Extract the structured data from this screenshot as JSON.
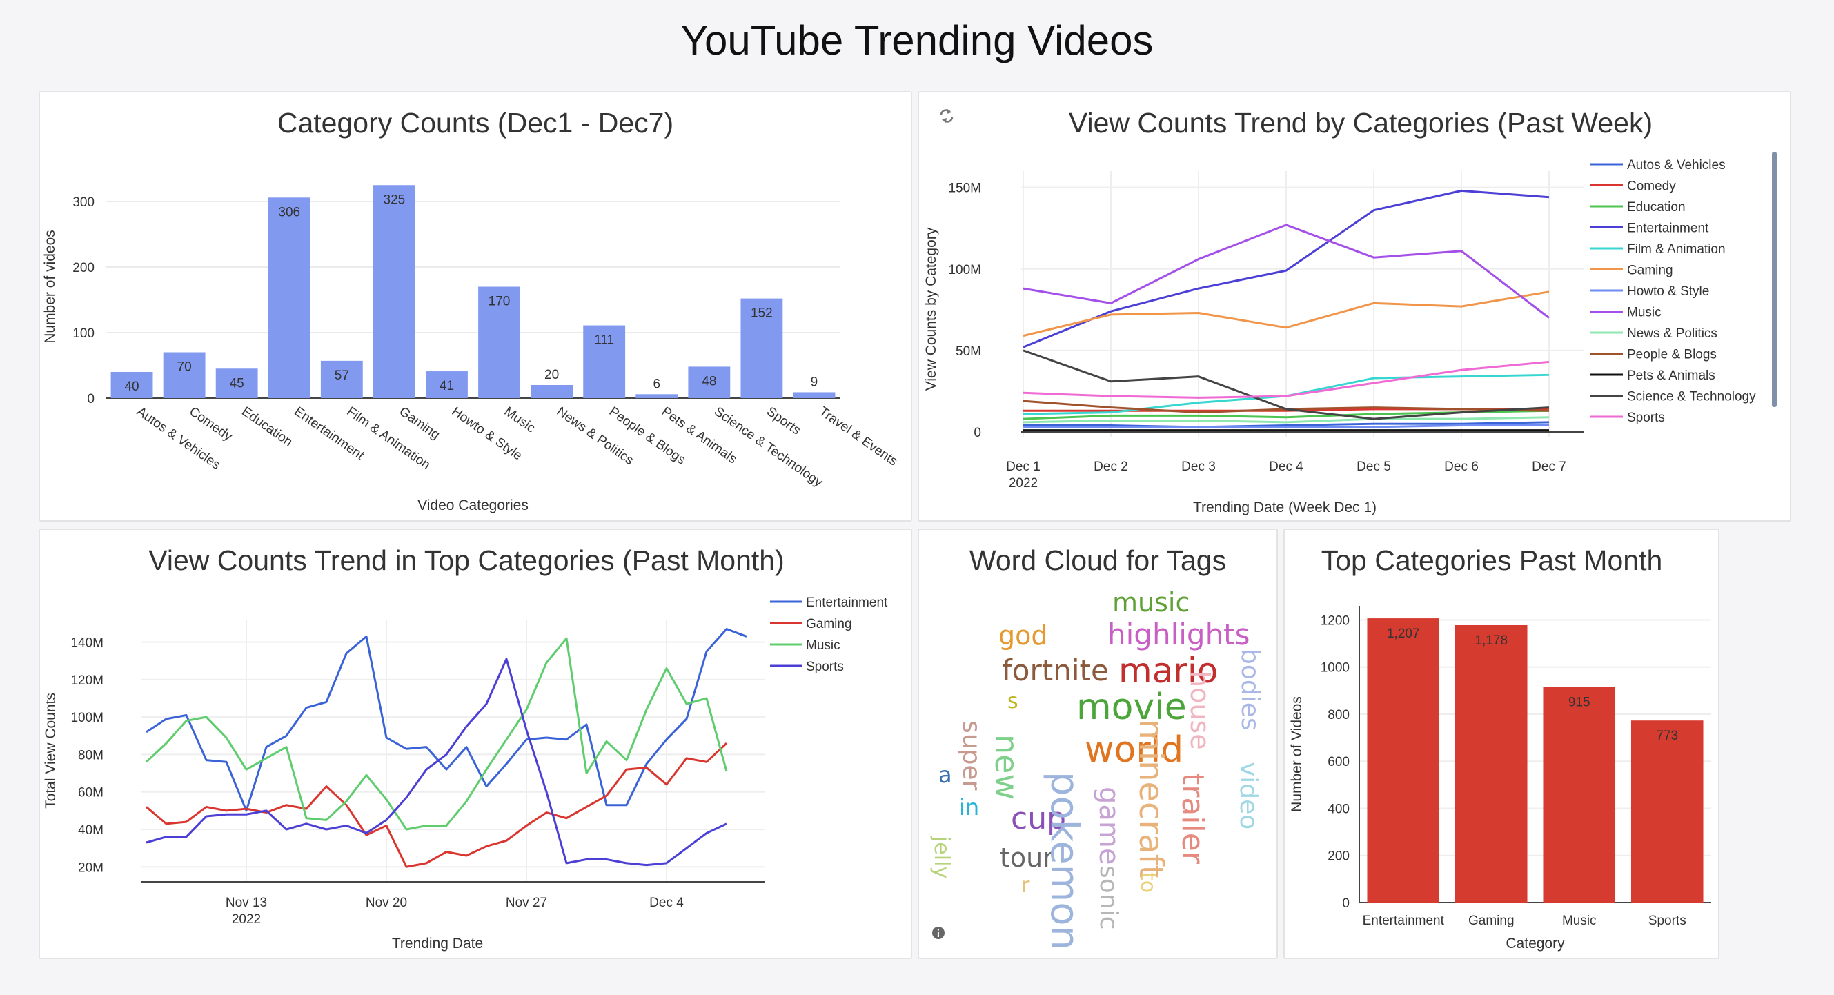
{
  "page": {
    "title": "YouTube Trending Videos"
  },
  "icons": {
    "refresh": "refresh-icon",
    "info": "info-icon"
  },
  "chart_data": [
    {
      "id": "category_counts",
      "type": "bar",
      "title": "Category Counts (Dec1 - Dec7)",
      "xlabel": "Video Categories",
      "ylabel": "Number of videos",
      "ylim": [
        0,
        340
      ],
      "yticks": [
        0,
        100,
        200,
        300
      ],
      "color": "#8299f0",
      "categories": [
        "Autos & Vehicles",
        "Comedy",
        "Education",
        "Entertainment",
        "Film & Animation",
        "Gaming",
        "Howto & Style",
        "Music",
        "News & Politics",
        "People & Blogs",
        "Pets & Animals",
        "Science & Technology",
        "Sports",
        "Travel & Events"
      ],
      "values": [
        40,
        70,
        45,
        306,
        57,
        325,
        41,
        170,
        20,
        111,
        6,
        48,
        152,
        9
      ]
    },
    {
      "id": "views_by_category_week",
      "type": "line",
      "title": "View Counts Trend by Categories (Past Week)",
      "xlabel": "Trending Date (Week Dec 1)",
      "ylabel": "View Counts by Category",
      "x": [
        "Dec 1",
        "Dec 2",
        "Dec 3",
        "Dec 4",
        "Dec 5",
        "Dec 6",
        "Dec 7"
      ],
      "x_sub": "2022",
      "ylim": [
        0,
        160
      ],
      "yticks": [
        {
          "v": 0,
          "label": "0"
        },
        {
          "v": 50,
          "label": "50M"
        },
        {
          "v": 100,
          "label": "100M"
        },
        {
          "v": 150,
          "label": "150M"
        }
      ],
      "legend": "right",
      "series": [
        {
          "name": "Autos & Vehicles",
          "color": "#3b63d8",
          "values": [
            4,
            4,
            3,
            4,
            5,
            5,
            6
          ]
        },
        {
          "name": "Comedy",
          "color": "#d9362f",
          "values": [
            13,
            13,
            13,
            13,
            14,
            14,
            14
          ]
        },
        {
          "name": "Education",
          "color": "#4cc44f",
          "values": [
            8,
            10,
            10,
            9,
            11,
            12,
            13
          ]
        },
        {
          "name": "Entertainment",
          "color": "#4b3fd6",
          "values": [
            52,
            74,
            88,
            99,
            136,
            148,
            144
          ]
        },
        {
          "name": "Film & Animation",
          "color": "#38d6d0",
          "values": [
            11,
            12,
            18,
            22,
            33,
            34,
            35
          ]
        },
        {
          "name": "Gaming",
          "color": "#f0954a",
          "values": [
            59,
            72,
            73,
            64,
            79,
            77,
            86
          ]
        },
        {
          "name": "Howto & Style",
          "color": "#6e8cf2",
          "values": [
            3,
            3,
            3,
            3,
            3,
            4,
            4
          ]
        },
        {
          "name": "Music",
          "color": "#a34fe8",
          "values": [
            88,
            79,
            106,
            127,
            107,
            111,
            70
          ]
        },
        {
          "name": "News & Politics",
          "color": "#8fe7b0",
          "values": [
            6,
            7,
            7,
            6,
            8,
            8,
            9
          ]
        },
        {
          "name": "People & Blogs",
          "color": "#a0522d",
          "values": [
            19,
            15,
            12,
            14,
            15,
            14,
            13
          ]
        },
        {
          "name": "Pets & Animals",
          "color": "#111111",
          "values": [
            1,
            1,
            1,
            1,
            1,
            1,
            1
          ]
        },
        {
          "name": "Science & Technology",
          "color": "#444444",
          "values": [
            50,
            31,
            34,
            14,
            8,
            12,
            15
          ]
        },
        {
          "name": "Sports",
          "color": "#ef6ad4",
          "values": [
            24,
            22,
            21,
            22,
            30,
            38,
            43
          ]
        }
      ]
    },
    {
      "id": "views_top_month",
      "type": "line",
      "title": "View Counts Trend in Top Categories (Past Month)",
      "xlabel": "Trending Date",
      "ylabel": "Total View Counts",
      "x_start": "Nov 8 2022",
      "xticks": [
        {
          "day": 5,
          "label": "Nov 13",
          "sub": "2022"
        },
        {
          "day": 12,
          "label": "Nov 20"
        },
        {
          "day": 19,
          "label": "Nov 27"
        },
        {
          "day": 26,
          "label": "Dec 4"
        }
      ],
      "xlim": [
        0,
        31
      ],
      "ylim": [
        12,
        152
      ],
      "yticks": [
        {
          "v": 20,
          "label": "20M"
        },
        {
          "v": 40,
          "label": "40M"
        },
        {
          "v": 60,
          "label": "60M"
        },
        {
          "v": 80,
          "label": "80M"
        },
        {
          "v": 100,
          "label": "100M"
        },
        {
          "v": 120,
          "label": "120M"
        },
        {
          "v": 140,
          "label": "140M"
        }
      ],
      "legend": "top-right",
      "series": [
        {
          "name": "Entertainment",
          "color": "#3b63d8",
          "values": [
            92,
            99,
            101,
            77,
            76,
            50,
            84,
            90,
            105,
            108,
            134,
            143,
            89,
            83,
            84,
            72,
            84,
            63,
            75,
            88,
            89,
            88,
            96,
            53,
            53,
            75,
            88,
            99,
            135,
            147,
            143
          ]
        },
        {
          "name": "Gaming",
          "color": "#d9362f",
          "values": [
            52,
            43,
            44,
            52,
            50,
            51,
            49,
            53,
            51,
            63,
            53,
            37,
            42,
            20,
            22,
            28,
            26,
            31,
            34,
            42,
            49,
            46,
            52,
            58,
            72,
            73,
            64,
            78,
            76,
            86
          ]
        },
        {
          "name": "Music",
          "color": "#5fcc6e",
          "values": [
            76,
            86,
            98,
            100,
            89,
            72,
            78,
            84,
            46,
            45,
            55,
            69,
            56,
            40,
            42,
            42,
            55,
            72,
            88,
            104,
            129,
            142,
            70,
            87,
            77,
            104,
            126,
            107,
            110,
            71
          ]
        },
        {
          "name": "Sports",
          "color": "#4b3fd6",
          "values": [
            33,
            36,
            36,
            47,
            48,
            48,
            50,
            40,
            43,
            40,
            42,
            38,
            45,
            57,
            72,
            80,
            95,
            107,
            131,
            93,
            60,
            22,
            24,
            24,
            22,
            21,
            22,
            30,
            38,
            43
          ]
        }
      ]
    },
    {
      "id": "word_cloud",
      "type": "wordcloud",
      "title": "Word Cloud for Tags",
      "words": [
        {
          "text": "music",
          "color": "#5fa136"
        },
        {
          "text": "god",
          "color": "#e59a2f"
        },
        {
          "text": "highlights",
          "color": "#c75fc4"
        },
        {
          "text": "fortnite",
          "color": "#8b5a3c"
        },
        {
          "text": "mario",
          "color": "#c22f2f"
        },
        {
          "text": "s",
          "color": "#bcb41f"
        },
        {
          "text": "movie",
          "color": "#4ca53b"
        },
        {
          "text": "world",
          "color": "#e0741f"
        },
        {
          "text": "a",
          "color": "#3a6fb0"
        },
        {
          "text": "in",
          "color": "#29b3d6"
        },
        {
          "text": "cup",
          "color": "#8b4fb8"
        },
        {
          "text": "tour",
          "color": "#666666"
        },
        {
          "text": "r",
          "color": "#e7c07a"
        },
        {
          "text": "super",
          "color": "#c79a90"
        },
        {
          "text": "new",
          "color": "#7fd08a"
        },
        {
          "text": "jelly",
          "color": "#b6d27a"
        },
        {
          "text": "pokemon",
          "color": "#9db5dc"
        },
        {
          "text": "game",
          "color": "#c6a3d3"
        },
        {
          "text": "sonic",
          "color": "#b7b7b7"
        },
        {
          "text": "minecraft",
          "color": "#e8b27a"
        },
        {
          "text": "to",
          "color": "#e9d27a"
        },
        {
          "text": "house",
          "color": "#f0b5c0"
        },
        {
          "text": "trailer",
          "color": "#e68a7f"
        },
        {
          "text": "bodies",
          "color": "#aab8e8"
        },
        {
          "text": "video",
          "color": "#9fd8e4"
        }
      ]
    },
    {
      "id": "top_categories_month",
      "type": "bar",
      "title": "Top Categories Past Month",
      "xlabel": "Category",
      "ylabel": "Number of Videos",
      "ylim": [
        0,
        1260
      ],
      "yticks": [
        0,
        200,
        400,
        600,
        800,
        1000,
        1200
      ],
      "color": "#d63b30",
      "categories": [
        "Entertainment",
        "Gaming",
        "Music",
        "Sports"
      ],
      "values": [
        1207,
        1178,
        915,
        773
      ],
      "value_labels": [
        "1,207",
        "1,178",
        "915",
        "773"
      ]
    }
  ]
}
